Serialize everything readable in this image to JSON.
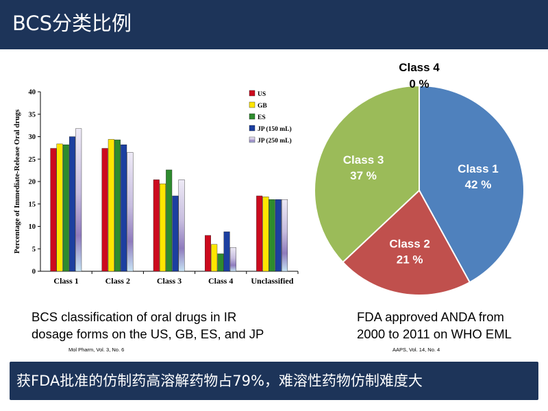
{
  "slide": {
    "title": "BCS分类比例",
    "bottom_banner": "获FDA批准的仿制药高溶解药物占79%，难溶性药物仿制难度大"
  },
  "bar_caption": {
    "line1": "BCS classification of oral drugs in IR",
    "line2": "dosage forms on the US, GB, ES, and JP",
    "citation": "Mol Pharm, Vol. 3, No. 6"
  },
  "pie_caption": {
    "line1": "FDA approved ANDA from",
    "line2": "2000 to 2011 on WHO EML",
    "citation": "AAPS, Vol. 14, No. 4"
  },
  "chart_data": [
    {
      "type": "bar",
      "ylabel": "Percentage of Immediate-Release Oral drugs",
      "xlabel": "",
      "ylim": [
        0,
        40
      ],
      "yticks": [
        0,
        5,
        10,
        15,
        20,
        25,
        30,
        35,
        40
      ],
      "categories": [
        "Class 1",
        "Class 2",
        "Class 3",
        "Class 4",
        "Unclassified"
      ],
      "series": [
        {
          "name": "US",
          "color": "#cc0a1e",
          "values": [
            27.4,
            27.4,
            20.4,
            8.0,
            16.8
          ]
        },
        {
          "name": "GB",
          "color": "#ffe600",
          "values": [
            28.4,
            29.4,
            19.5,
            6.0,
            16.6
          ]
        },
        {
          "name": "ES",
          "color": "#2e8b2e",
          "values": [
            28.2,
            29.3,
            22.6,
            3.9,
            16.0
          ]
        },
        {
          "name": "JP (150 mL)",
          "color": "#1c3fa0",
          "values": [
            30.0,
            28.2,
            16.8,
            8.8,
            16.0
          ]
        },
        {
          "name": "JP (250 mL)",
          "color": "#d8d2ea",
          "values": [
            31.8,
            26.5,
            20.4,
            5.3,
            16.0
          ]
        }
      ],
      "legend_position": "top-right",
      "grid": false
    },
    {
      "type": "pie",
      "slices": [
        {
          "label": "Class 1",
          "value": 42,
          "value_label": "42 %",
          "color": "#4f81bd"
        },
        {
          "label": "Class 2",
          "value": 21,
          "value_label": "21 %",
          "color": "#c0504d"
        },
        {
          "label": "Class 3",
          "value": 37,
          "value_label": "37 %",
          "color": "#9bbb59"
        },
        {
          "label": "Class 4",
          "value": 0,
          "value_label": "0 %",
          "color": "#8064a2"
        }
      ]
    }
  ]
}
